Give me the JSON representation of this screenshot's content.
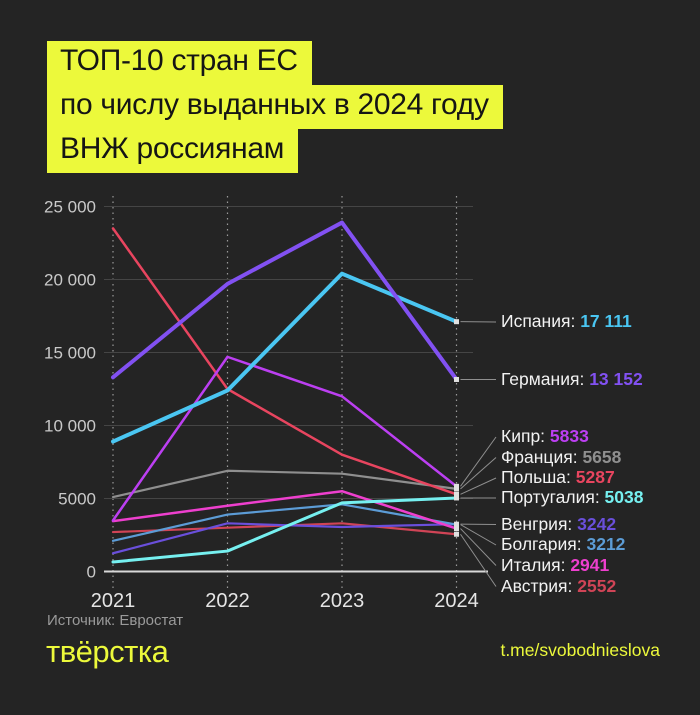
{
  "title": {
    "lines": [
      "ТОП-10 стран ЕС",
      "по числу выданных в 2024 году",
      "ВНЖ россиянам"
    ]
  },
  "source": "Источник: Евростат",
  "footer": {
    "logo": "твёрстка",
    "link": "t.me/svobodnieslova"
  },
  "colors": {
    "background": "#242424",
    "accent_yellow": "#ECF93B",
    "gridline": "#454545",
    "zero_axis": "#d8d8d8",
    "dotted_year_line": "#9a9a9a",
    "connector": "#8f8f8f",
    "axis_text": "#c9c9c9",
    "year_text": "#e5e5e5",
    "endpoint_marker": "#e0e0e0"
  },
  "chart_data": {
    "type": "line",
    "title": "ТОП-10 стран ЕС по числу выданных в 2024 году ВНЖ россиянам",
    "x": [
      "2021",
      "2022",
      "2023",
      "2024"
    ],
    "xlabel": "",
    "ylabel": "",
    "ylim": [
      0,
      25000
    ],
    "grid": "horizontal solid, vertical dotted per year",
    "legend_position": "right",
    "y_ticks": [
      {
        "value": 25000,
        "label": "25 000"
      },
      {
        "value": 20000,
        "label": "20 000"
      },
      {
        "value": 15000,
        "label": "15 000"
      },
      {
        "value": 10000,
        "label": "10 000"
      },
      {
        "value": 5000,
        "label": "5000"
      },
      {
        "value": 0,
        "label": "0"
      }
    ],
    "series": [
      {
        "id": "spain",
        "name": "Испания",
        "color": "#4AC6F2",
        "values": [
          8900,
          12400,
          20400,
          17111
        ],
        "final_label": "17 111"
      },
      {
        "id": "germany",
        "name": "Германия",
        "color": "#8251F2",
        "values": [
          13300,
          19700,
          23900,
          13152
        ],
        "final_label": "13 152"
      },
      {
        "id": "cyprus",
        "name": "Кипр",
        "color": "#BC3FF2",
        "values": [
          3500,
          14700,
          12000,
          5833
        ],
        "final_label": "5833"
      },
      {
        "id": "france",
        "name": "Франция",
        "color": "#8F8F8F",
        "values": [
          5100,
          6900,
          6700,
          5658
        ],
        "final_label": "5658"
      },
      {
        "id": "poland",
        "name": "Польша",
        "color": "#E8455F",
        "values": [
          23500,
          12500,
          8000,
          5287
        ],
        "final_label": "5287"
      },
      {
        "id": "portugal",
        "name": "Португалия",
        "color": "#76F0F0",
        "values": [
          650,
          1400,
          4700,
          5038
        ],
        "final_label": "5038"
      },
      {
        "id": "hungary",
        "name": "Венгрия",
        "color": "#6A4FDB",
        "values": [
          1250,
          3300,
          3050,
          3242
        ],
        "final_label": "3242"
      },
      {
        "id": "bulgaria",
        "name": "Болгария",
        "color": "#5C9CD6",
        "values": [
          2100,
          3900,
          4600,
          3212
        ],
        "final_label": "3212"
      },
      {
        "id": "italy",
        "name": "Италия",
        "color": "#EE3FCE",
        "values": [
          3450,
          4500,
          5500,
          2941
        ],
        "final_label": "2941"
      },
      {
        "id": "austria",
        "name": "Австрия",
        "color": "#D04456",
        "values": [
          2700,
          3000,
          3300,
          2552
        ],
        "final_label": "2552"
      }
    ]
  }
}
